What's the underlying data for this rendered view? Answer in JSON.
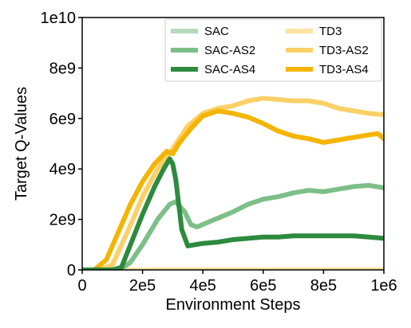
{
  "chart_data": {
    "type": "line",
    "title": "",
    "xlabel": "Environment Steps",
    "ylabel": "Target Q-Values",
    "xlim": [
      0,
      1000000
    ],
    "ylim": [
      0,
      10000000000
    ],
    "x_ticks": [
      {
        "value": 0,
        "label": "0"
      },
      {
        "value": 200000,
        "label": "2e5"
      },
      {
        "value": 400000,
        "label": "4e5"
      },
      {
        "value": 600000,
        "label": "6e5"
      },
      {
        "value": 800000,
        "label": "8e5"
      },
      {
        "value": 1000000,
        "label": "1e6"
      }
    ],
    "y_ticks": [
      {
        "value": 0,
        "label": "0"
      },
      {
        "value": 2000000000,
        "label": "2e9"
      },
      {
        "value": 4000000000,
        "label": "4e9"
      },
      {
        "value": 6000000000,
        "label": "6e9"
      },
      {
        "value": 8000000000,
        "label": "8e9"
      },
      {
        "value": 10000000000,
        "label": "1e10"
      }
    ],
    "grid": false,
    "legend_position": "top-right",
    "legend_columns": 2,
    "series": [
      {
        "name": "SAC",
        "color": "#b5d9bb",
        "x": [
          0,
          1000000
        ],
        "y": [
          0,
          0
        ]
      },
      {
        "name": "SAC-AS2",
        "color": "#7dbf88",
        "x": [
          0,
          100000,
          130000,
          160000,
          200000,
          250000,
          290000,
          310000,
          340000,
          360000,
          380000,
          420000,
          460000,
          500000,
          550000,
          600000,
          650000,
          700000,
          750000,
          800000,
          850000,
          900000,
          950000,
          1000000
        ],
        "y": [
          0,
          0,
          50000000,
          300000000,
          1000000000,
          2000000000,
          2600000000,
          2700000000,
          2300000000,
          1800000000,
          1700000000,
          1900000000,
          2100000000,
          2300000000,
          2600000000,
          2800000000,
          2900000000,
          3050000000,
          3150000000,
          3100000000,
          3200000000,
          3300000000,
          3350000000,
          3250000000
        ]
      },
      {
        "name": "SAC-AS4",
        "color": "#2d8a3e",
        "x": [
          0,
          100000,
          130000,
          160000,
          200000,
          240000,
          270000,
          290000,
          300000,
          310000,
          320000,
          330000,
          350000,
          400000,
          450000,
          500000,
          550000,
          600000,
          650000,
          700000,
          750000,
          800000,
          850000,
          900000,
          950000,
          1000000
        ],
        "y": [
          0,
          0,
          100000000,
          1000000000,
          2200000000,
          3300000000,
          4000000000,
          4400000000,
          4200000000,
          3600000000,
          2600000000,
          1600000000,
          950000000,
          1050000000,
          1100000000,
          1200000000,
          1250000000,
          1300000000,
          1300000000,
          1350000000,
          1350000000,
          1350000000,
          1350000000,
          1350000000,
          1300000000,
          1250000000
        ]
      },
      {
        "name": "TD3",
        "color": "#fde3a0",
        "x": [
          0,
          1000000
        ],
        "y": [
          0,
          0
        ]
      },
      {
        "name": "TD3-AS2",
        "color": "#fbd067",
        "x": [
          0,
          60000,
          100000,
          150000,
          200000,
          250000,
          300000,
          350000,
          400000,
          450000,
          500000,
          550000,
          600000,
          650000,
          700000,
          750000,
          800000,
          850000,
          900000,
          950000,
          1000000
        ],
        "y": [
          0,
          0,
          200000000,
          1500000000,
          2900000000,
          4000000000,
          4800000000,
          5700000000,
          6200000000,
          6400000000,
          6500000000,
          6700000000,
          6800000000,
          6750000000,
          6700000000,
          6700000000,
          6600000000,
          6400000000,
          6300000000,
          6200000000,
          6150000000
        ]
      },
      {
        "name": "TD3-AS4",
        "color": "#f4b400",
        "x": [
          0,
          40000,
          80000,
          120000,
          160000,
          200000,
          240000,
          280000,
          300000,
          320000,
          360000,
          400000,
          450000,
          500000,
          550000,
          600000,
          650000,
          700000,
          750000,
          800000,
          850000,
          900000,
          950000,
          980000,
          1000000
        ],
        "y": [
          0,
          0,
          400000000,
          1500000000,
          2600000000,
          3500000000,
          4200000000,
          4700000000,
          4600000000,
          5000000000,
          5600000000,
          6100000000,
          6300000000,
          6200000000,
          6050000000,
          5800000000,
          5500000000,
          5300000000,
          5200000000,
          5050000000,
          5150000000,
          5250000000,
          5350000000,
          5400000000,
          5200000000
        ]
      }
    ]
  }
}
